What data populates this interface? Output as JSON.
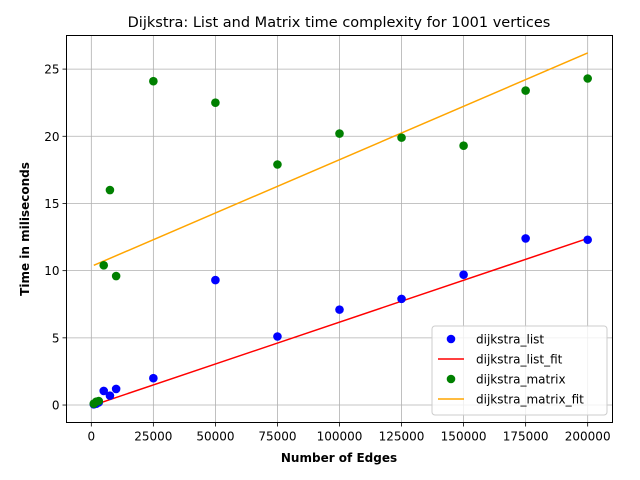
{
  "chart_data": {
    "type": "scatter",
    "title": "Dijkstra: List and Matrix time complexity for 1001 vertices",
    "xlabel": "Number of Edges",
    "ylabel": "Time in miliseconds",
    "xlim": [
      -10000,
      210000
    ],
    "ylim": [
      -1.3,
      27.5
    ],
    "xticks": [
      0,
      25000,
      50000,
      75000,
      100000,
      125000,
      150000,
      175000,
      200000
    ],
    "yticks": [
      0,
      5,
      10,
      15,
      20,
      25
    ],
    "grid": true,
    "legend_position": "lower-right",
    "series": [
      {
        "name": "dijkstra_list",
        "kind": "scatter",
        "color": "#0000ff",
        "x": [
          1000,
          2000,
          3000,
          5000,
          7500,
          10000,
          25000,
          50000,
          75000,
          100000,
          125000,
          150000,
          175000,
          200000
        ],
        "y": [
          0.05,
          0.1,
          0.2,
          1.05,
          0.7,
          1.2,
          2.0,
          9.3,
          5.1,
          7.1,
          7.9,
          9.7,
          12.4,
          12.3
        ]
      },
      {
        "name": "dijkstra_list_fit",
        "kind": "line",
        "color": "#ff0000",
        "x": [
          1000,
          200000
        ],
        "y": [
          0.0,
          12.4
        ]
      },
      {
        "name": "dijkstra_matrix",
        "kind": "scatter",
        "color": "#008000",
        "x": [
          1000,
          2000,
          3000,
          5000,
          7500,
          10000,
          25000,
          50000,
          75000,
          100000,
          125000,
          150000,
          175000,
          200000
        ],
        "y": [
          0.1,
          0.25,
          0.3,
          10.4,
          16.0,
          9.6,
          24.1,
          22.5,
          17.9,
          20.2,
          19.9,
          19.3,
          23.4,
          24.3
        ]
      },
      {
        "name": "dijkstra_matrix_fit",
        "kind": "line",
        "color": "#ffa500",
        "x": [
          1000,
          200000
        ],
        "y": [
          10.4,
          26.2
        ]
      }
    ]
  }
}
